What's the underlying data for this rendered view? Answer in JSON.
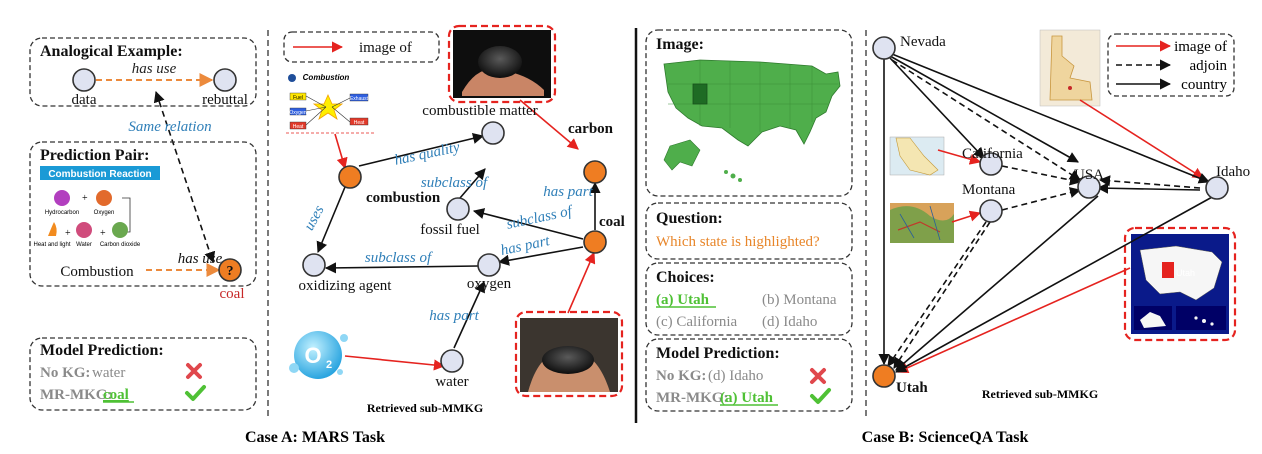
{
  "case_a": {
    "caption": "Case A: MARS Task",
    "analogical_title": "Analogical Example:",
    "ex_head": "data",
    "ex_tail": "rebuttal",
    "ex_relation": "has use",
    "same_relation": "Same relation",
    "pair_title": "Prediction Pair:",
    "pair_relation": "has use",
    "pair_answer": "coal",
    "combustion_banner": "Combustion Reaction",
    "reaction_labels": [
      "Hydrocarbon",
      "Oxygen",
      "Heat and light",
      "Water",
      "Carbon dioxide"
    ],
    "pair_image_caption": "Combustion",
    "model_title": "Model Prediction:",
    "nokg_label": "No KG:",
    "nokg_value": "water",
    "mrmkg_label": "MR-MKG:",
    "mrmkg_value": "coal",
    "legend_image_of": "image of",
    "combustion_chart_title": "Combustion",
    "chart_boxes": [
      "Fuel",
      "Oxygen",
      "Heat",
      "Exhaust",
      "Heat"
    ],
    "subgraph_caption": "Retrieved sub-MMKG",
    "nodes": {
      "combustible_matter": "combustible matter",
      "combustion": "combustion",
      "carbon": "carbon",
      "fossil_fuel": "fossil fuel",
      "coal": "coal",
      "oxidizing_agent": "oxidizing agent",
      "oxygen": "oxygen",
      "water": "water"
    },
    "edges": {
      "has_quality": "has quality",
      "uses": "uses",
      "subclass_of_1": "subclass of",
      "subclass_of_2": "subclass of",
      "subclass_of_3": "subclass of",
      "has_part_1": "has part",
      "has_part_2": "has part",
      "has_part_3": "has part"
    },
    "o2_glyph": "O",
    "o2_sub": "2"
  },
  "case_b": {
    "caption": "Case B: ScienceQA Task",
    "image_title": "Image:",
    "question_title": "Question:",
    "question_text": "Which state is highlighted?",
    "choices_title": "Choices:",
    "choices": [
      "(a) Utah",
      "(b) Montana",
      "(c) California",
      "(d) Idaho"
    ],
    "model_title": "Model Prediction:",
    "nokg_label": "No KG:",
    "nokg_value": "(d) Idaho",
    "mrmkg_label": "MR-MKG:",
    "mrmkg_value": "(a) Utah",
    "legend": [
      "image of",
      "adjoin",
      "country"
    ],
    "nodes": {
      "nevada": "Nevada",
      "california": "California",
      "montana": "Montana",
      "usa": "USA",
      "idaho": "Idaho",
      "utah": "Utah"
    },
    "map_tag": "Utah",
    "subgraph_caption": "Retrieved sub-MMKG"
  },
  "colors": {
    "node_fill": "#dfe3f1",
    "highlight_node": "#ef7d22",
    "relation_text": "#2f7fb8",
    "image_of_arrow": "#e5231f",
    "correct": "#4fc135",
    "wrong": "#e0474c",
    "question": "#e8862a",
    "map_green": "#4fae4b"
  },
  "icons": [
    "cross-icon",
    "check-icon"
  ]
}
